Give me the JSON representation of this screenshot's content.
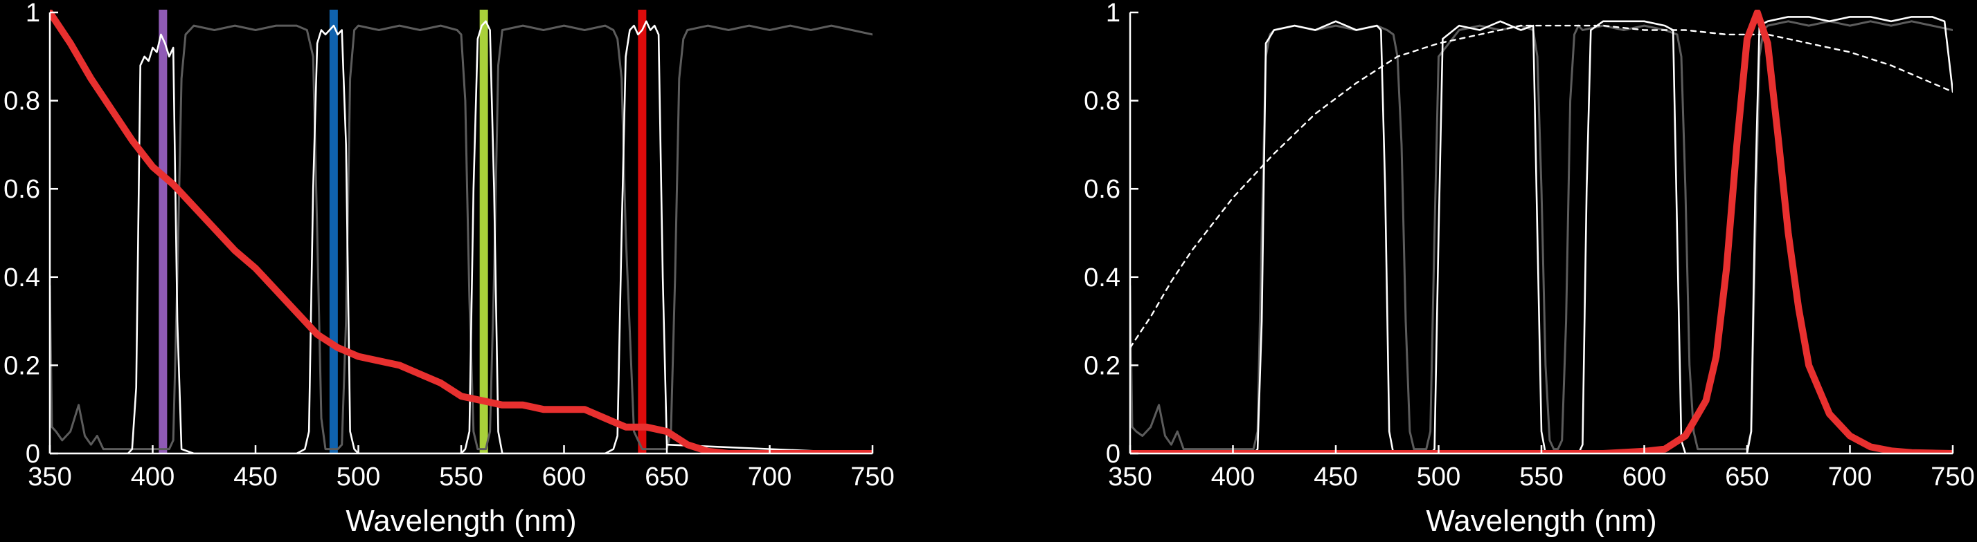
{
  "colors": {
    "background": "#000000",
    "axis": "#ffffff",
    "red_curve": "#e8302f",
    "gray_filter": "#5c5c5c",
    "white_filter": "#ffffff",
    "laser_violet": "#8f5ab5",
    "laser_blue": "#0f62ae",
    "laser_green": "#a9d13a",
    "laser_red": "#dd0b0b"
  },
  "chart_data": [
    {
      "type": "line",
      "xlabel": "Wavelength (nm)",
      "ylabel": "",
      "xlim": [
        350,
        750
      ],
      "ylim": [
        0,
        1
      ],
      "xticks": [
        350,
        400,
        450,
        500,
        550,
        600,
        650,
        700,
        750
      ],
      "yticks": [
        0,
        0.2,
        0.4,
        0.6,
        0.8,
        1
      ],
      "ytick_labels": [
        "0",
        "0.2",
        "0.4",
        "0.6",
        "0.8",
        "1"
      ],
      "grid": false,
      "legend": "none",
      "lasers": [
        {
          "wavelength": 405,
          "color": "#8f5ab5"
        },
        {
          "wavelength": 488,
          "color": "#0f62ae"
        },
        {
          "wavelength": 561,
          "color": "#a9d13a"
        },
        {
          "wavelength": 638,
          "color": "#dd0b0b"
        }
      ],
      "series": [
        {
          "style": "gray",
          "x": [
            350,
            351,
            353,
            356,
            360,
            364,
            367,
            370,
            373,
            376,
            380,
            384,
            388,
            392,
            396,
            398,
            400,
            402,
            404,
            406,
            408,
            410,
            412,
            414,
            416,
            418,
            420,
            430,
            440,
            450,
            460,
            470,
            475,
            478,
            480,
            482,
            484,
            486,
            488,
            490,
            492,
            494,
            496,
            498,
            500,
            510,
            520,
            530,
            540,
            548,
            550,
            552,
            554,
            556,
            558,
            560,
            562,
            564,
            566,
            568,
            570,
            580,
            590,
            600,
            610,
            620,
            624,
            626,
            628,
            630,
            634,
            638,
            642,
            644,
            646,
            648,
            650,
            652,
            654,
            656,
            658,
            660,
            670,
            680,
            690,
            700,
            710,
            720,
            730,
            740,
            750
          ],
          "y": [
            0.38,
            0.06,
            0.05,
            0.03,
            0.05,
            0.11,
            0.04,
            0.02,
            0.04,
            0.01,
            0.01,
            0.01,
            0.01,
            0.01,
            0.01,
            0.01,
            0.01,
            0.01,
            0.01,
            0.01,
            0.01,
            0.03,
            0.4,
            0.85,
            0.95,
            0.96,
            0.97,
            0.96,
            0.97,
            0.96,
            0.97,
            0.97,
            0.96,
            0.9,
            0.5,
            0.08,
            0.01,
            0.01,
            0.01,
            0.01,
            0.02,
            0.3,
            0.85,
            0.96,
            0.97,
            0.96,
            0.97,
            0.96,
            0.97,
            0.96,
            0.95,
            0.8,
            0.35,
            0.05,
            0.01,
            0.01,
            0.01,
            0.05,
            0.4,
            0.88,
            0.96,
            0.97,
            0.96,
            0.97,
            0.96,
            0.97,
            0.96,
            0.94,
            0.85,
            0.5,
            0.05,
            0.01,
            0.01,
            0.01,
            0.01,
            0.01,
            0.01,
            0.05,
            0.4,
            0.85,
            0.94,
            0.96,
            0.97,
            0.96,
            0.97,
            0.96,
            0.97,
            0.96,
            0.97,
            0.96,
            0.95
          ]
        },
        {
          "style": "white",
          "x": [
            350,
            388,
            390,
            392,
            394,
            396,
            398,
            400,
            402,
            404,
            406,
            408,
            410,
            412,
            414,
            420,
            470,
            474,
            476,
            478,
            480,
            482,
            484,
            486,
            488,
            490,
            492,
            494,
            496,
            498,
            500,
            550,
            552,
            554,
            556,
            558,
            560,
            562,
            564,
            566,
            568,
            570,
            620,
            624,
            626,
            628,
            630,
            632,
            634,
            636,
            638,
            640,
            642,
            644,
            646,
            648,
            650,
            750
          ],
          "y": [
            0,
            0,
            0.01,
            0.15,
            0.88,
            0.9,
            0.89,
            0.92,
            0.91,
            0.95,
            0.93,
            0.9,
            0.92,
            0.3,
            0.01,
            0,
            0,
            0.01,
            0.05,
            0.6,
            0.93,
            0.96,
            0.95,
            0.96,
            0.97,
            0.95,
            0.96,
            0.7,
            0.05,
            0.01,
            0,
            0,
            0.01,
            0.05,
            0.6,
            0.94,
            0.97,
            0.98,
            0.96,
            0.6,
            0.05,
            0,
            0,
            0.01,
            0.04,
            0.5,
            0.9,
            0.96,
            0.97,
            0.95,
            0.96,
            0.98,
            0.96,
            0.97,
            0.95,
            0.4,
            0.02,
            0
          ]
        },
        {
          "style": "red",
          "x": [
            350,
            360,
            370,
            380,
            390,
            400,
            410,
            420,
            430,
            440,
            450,
            460,
            470,
            480,
            490,
            500,
            510,
            520,
            530,
            540,
            550,
            560,
            570,
            580,
            590,
            600,
            610,
            620,
            630,
            640,
            650,
            660,
            670,
            680,
            690,
            700,
            750
          ],
          "y": [
            1.0,
            0.93,
            0.85,
            0.78,
            0.71,
            0.65,
            0.61,
            0.56,
            0.51,
            0.46,
            0.42,
            0.37,
            0.32,
            0.27,
            0.24,
            0.22,
            0.21,
            0.2,
            0.18,
            0.16,
            0.13,
            0.12,
            0.11,
            0.11,
            0.1,
            0.1,
            0.1,
            0.08,
            0.06,
            0.06,
            0.05,
            0.02,
            0.005,
            0,
            0,
            0,
            0
          ]
        }
      ]
    },
    {
      "type": "line",
      "xlabel": "Wavelength (nm)",
      "ylabel": "",
      "xlim": [
        350,
        750
      ],
      "ylim": [
        0,
        1
      ],
      "xticks": [
        350,
        400,
        450,
        500,
        550,
        600,
        650,
        700,
        750
      ],
      "yticks": [
        0,
        0.2,
        0.4,
        0.6,
        0.8,
        1
      ],
      "ytick_labels": [
        "0",
        "0.2",
        "0.4",
        "0.6",
        "0.8",
        "1"
      ],
      "grid": false,
      "legend": "none",
      "lasers": [],
      "series": [
        {
          "style": "gray",
          "x": [
            350,
            351,
            353,
            356,
            360,
            364,
            367,
            370,
            373,
            376,
            380,
            390,
            400,
            408,
            410,
            412,
            414,
            416,
            418,
            420,
            430,
            440,
            450,
            460,
            470,
            475,
            478,
            480,
            482,
            484,
            486,
            488,
            490,
            492,
            494,
            496,
            498,
            500,
            510,
            520,
            530,
            540,
            546,
            548,
            550,
            552,
            554,
            556,
            558,
            560,
            562,
            564,
            566,
            568,
            570,
            580,
            590,
            600,
            610,
            616,
            618,
            620,
            622,
            624,
            626,
            628,
            630,
            640,
            650,
            652,
            654,
            656,
            658,
            660,
            670,
            680,
            690,
            700,
            710,
            720,
            730,
            740,
            750
          ],
          "y": [
            0.38,
            0.06,
            0.05,
            0.04,
            0.06,
            0.11,
            0.04,
            0.02,
            0.05,
            0.01,
            0.01,
            0.01,
            0.01,
            0.01,
            0.01,
            0.05,
            0.5,
            0.9,
            0.95,
            0.96,
            0.97,
            0.96,
            0.97,
            0.96,
            0.97,
            0.96,
            0.95,
            0.9,
            0.7,
            0.3,
            0.05,
            0.01,
            0.01,
            0.01,
            0.01,
            0.05,
            0.5,
            0.9,
            0.96,
            0.97,
            0.96,
            0.97,
            0.96,
            0.9,
            0.6,
            0.2,
            0.03,
            0.01,
            0.01,
            0.03,
            0.3,
            0.8,
            0.95,
            0.97,
            0.96,
            0.97,
            0.96,
            0.97,
            0.96,
            0.95,
            0.9,
            0.6,
            0.2,
            0.05,
            0.01,
            0.01,
            0.01,
            0.01,
            0.01,
            0.05,
            0.5,
            0.9,
            0.96,
            0.97,
            0.98,
            0.97,
            0.98,
            0.97,
            0.98,
            0.97,
            0.98,
            0.97,
            0.96
          ]
        },
        {
          "style": "white",
          "x": [
            350,
            410,
            412,
            414,
            416,
            420,
            430,
            440,
            450,
            460,
            470,
            472,
            474,
            476,
            478,
            496,
            498,
            500,
            502,
            510,
            520,
            530,
            540,
            546,
            548,
            550,
            552,
            568,
            570,
            572,
            574,
            580,
            590,
            600,
            610,
            614,
            616,
            618,
            620,
            650,
            652,
            654,
            656,
            660,
            670,
            680,
            690,
            700,
            710,
            720,
            730,
            740,
            746,
            748,
            750
          ],
          "y": [
            0,
            0,
            0.01,
            0.3,
            0.93,
            0.96,
            0.97,
            0.96,
            0.98,
            0.96,
            0.97,
            0.96,
            0.6,
            0.05,
            0,
            0,
            0.01,
            0.5,
            0.94,
            0.97,
            0.96,
            0.98,
            0.96,
            0.97,
            0.5,
            0.05,
            0,
            0,
            0.02,
            0.6,
            0.96,
            0.98,
            0.98,
            0.98,
            0.97,
            0.96,
            0.5,
            0.03,
            0,
            0,
            0.05,
            0.6,
            0.97,
            0.98,
            0.99,
            0.99,
            0.98,
            0.99,
            0.99,
            0.98,
            0.99,
            0.99,
            0.98,
            0.9,
            0.82
          ]
        },
        {
          "style": "dashed",
          "x": [
            350,
            360,
            370,
            380,
            390,
            400,
            420,
            440,
            460,
            480,
            500,
            520,
            540,
            560,
            580,
            600,
            620,
            640,
            660,
            680,
            700,
            720,
            740,
            750
          ],
          "y": [
            0.24,
            0.31,
            0.39,
            0.46,
            0.52,
            0.58,
            0.68,
            0.77,
            0.84,
            0.9,
            0.93,
            0.95,
            0.97,
            0.97,
            0.97,
            0.96,
            0.96,
            0.95,
            0.95,
            0.93,
            0.91,
            0.88,
            0.84,
            0.82
          ]
        },
        {
          "style": "red",
          "x": [
            350,
            580,
            600,
            610,
            620,
            630,
            635,
            640,
            645,
            650,
            655,
            660,
            665,
            670,
            675,
            680,
            690,
            700,
            710,
            720,
            730,
            740,
            750
          ],
          "y": [
            0,
            0,
            0.005,
            0.01,
            0.04,
            0.12,
            0.22,
            0.42,
            0.7,
            0.94,
            1.0,
            0.93,
            0.72,
            0.5,
            0.33,
            0.2,
            0.09,
            0.04,
            0.015,
            0.006,
            0.002,
            0.001,
            0
          ]
        }
      ]
    }
  ]
}
